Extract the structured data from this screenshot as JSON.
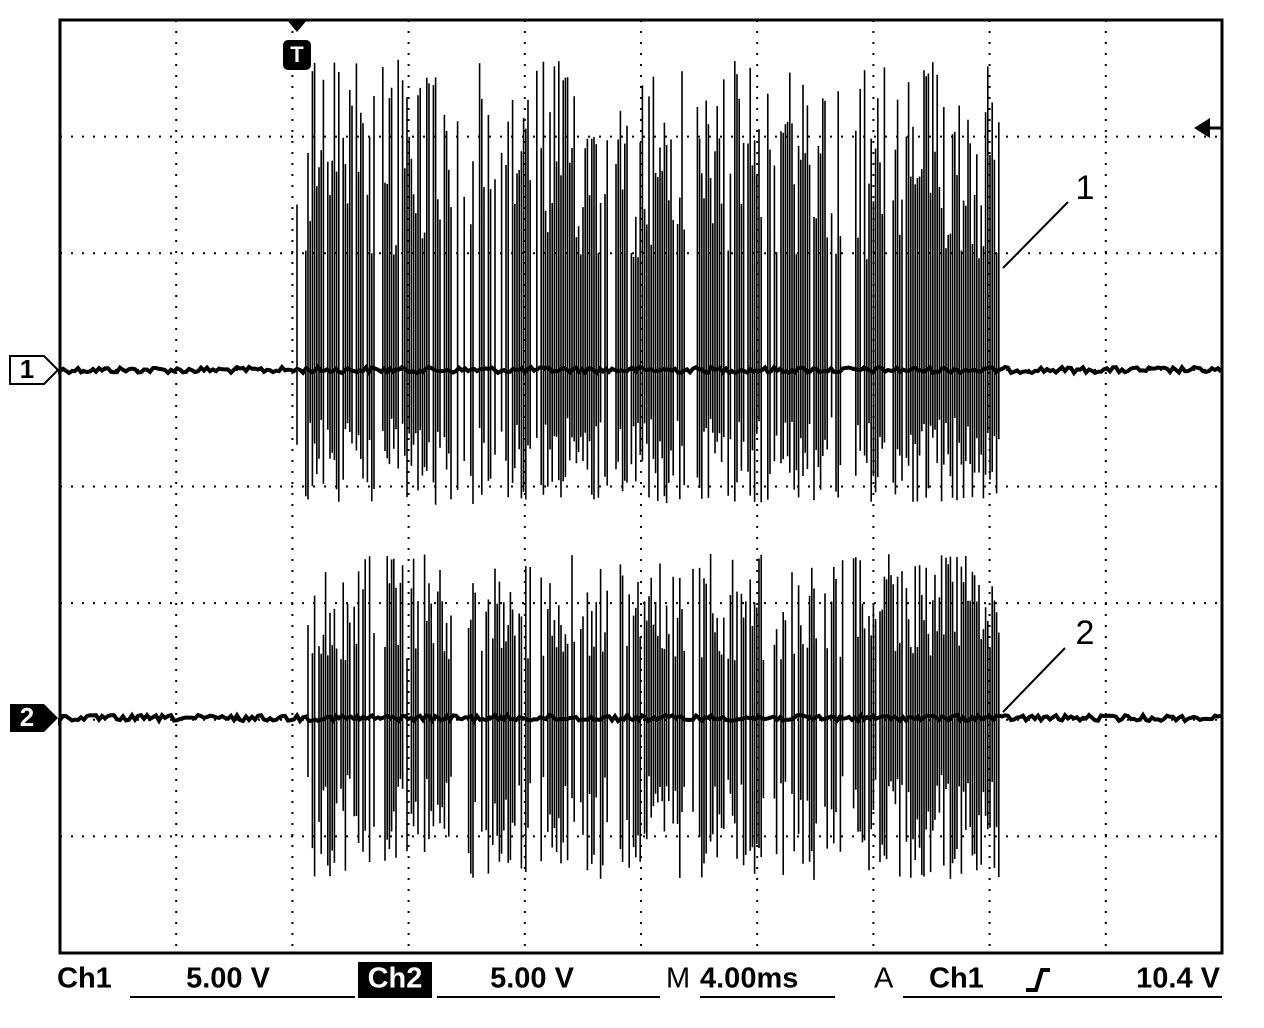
{
  "markers": {
    "trigger": "T",
    "channel_1": "1",
    "channel_2": "2"
  },
  "annotations": [
    "1",
    "2"
  ],
  "status_bar": {
    "ch1_label": "Ch1",
    "ch1_scale": "5.00 V",
    "ch2_label": "Ch2",
    "ch2_scale": "5.00 V",
    "time_prefix": "M",
    "time_scale": "4.00ms",
    "acq_prefix": "A",
    "trigger_source": "Ch1",
    "trigger_level": "10.4 V"
  }
}
